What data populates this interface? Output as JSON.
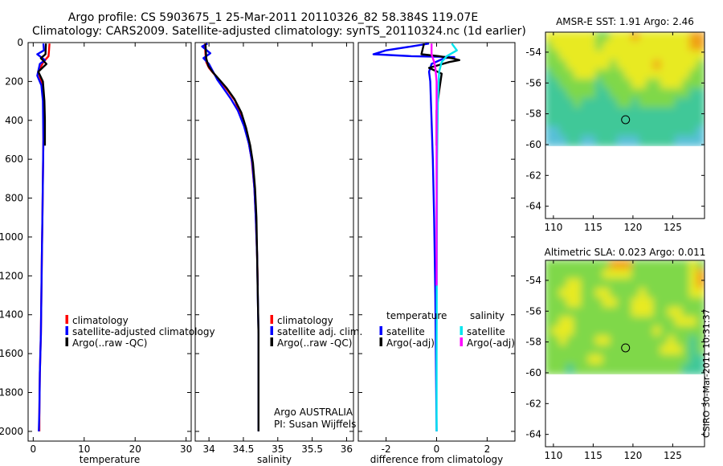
{
  "title": {
    "line1": "Argo profile: CS 5903675_1 25-Mar-2011 20110326_82 58.384S 119.07E",
    "line2": "Climatology: CARS2009. Satellite-adjusted climatology: synTS_20110324.nc (1d earlier)"
  },
  "credit": "CSIRO 30-Mar-2011 10:31:37",
  "colors": {
    "climatology": "#ff0000",
    "satellite": "#0000ff",
    "argo": "#000000",
    "sal_satellite": "#00e5ee",
    "sal_argo": "#ff00ff"
  },
  "chart_data": [
    {
      "type": "line",
      "name": "temperature-profile",
      "xlabel": "temperature",
      "ylabel": "",
      "xlim": [
        -1,
        31
      ],
      "ylim": [
        2050,
        0
      ],
      "xticks": [
        0,
        10,
        20,
        30
      ],
      "xtick_labels": [
        "0",
        "10",
        "20",
        "30"
      ],
      "yticks": [
        0,
        200,
        400,
        600,
        800,
        1000,
        1200,
        1400,
        1600,
        1800,
        2000
      ],
      "ytick_labels": [
        "0",
        "200",
        "400",
        "600",
        "800",
        "1000",
        "1200",
        "1400",
        "1600",
        "1800",
        "2000"
      ],
      "legend": [
        "climatology",
        "satellite-adjusted climatology",
        "Argo(..raw -QC)"
      ],
      "series": [
        {
          "name": "climatology",
          "color": "#ff0000",
          "points": [
            [
              3.2,
              5
            ],
            [
              3.1,
              40
            ],
            [
              3.0,
              70
            ],
            [
              2.0,
              100
            ],
            [
              1.0,
              150
            ],
            [
              1.6,
              200
            ],
            [
              2.0,
              300
            ],
            [
              2.0,
              500
            ],
            [
              1.9,
              700
            ],
            [
              1.8,
              900
            ],
            [
              1.7,
              1100
            ],
            [
              1.6,
              1300
            ],
            [
              1.5,
              1500
            ],
            [
              1.3,
              1700
            ],
            [
              1.2,
              1900
            ],
            [
              1.2,
              2000
            ]
          ]
        },
        {
          "name": "satellite-adjusted climatology",
          "color": "#0000ff",
          "points": [
            [
              2.0,
              5
            ],
            [
              2.1,
              40
            ],
            [
              0.8,
              60
            ],
            [
              2.3,
              90
            ],
            [
              1.3,
              110
            ],
            [
              0.8,
              170
            ],
            [
              1.6,
              220
            ],
            [
              1.9,
              300
            ],
            [
              2.0,
              500
            ],
            [
              1.9,
              700
            ],
            [
              1.8,
              900
            ],
            [
              1.7,
              1100
            ],
            [
              1.6,
              1300
            ],
            [
              1.5,
              1500
            ],
            [
              1.3,
              1700
            ],
            [
              1.2,
              1900
            ],
            [
              1.1,
              2000
            ]
          ]
        },
        {
          "name": "Argo(..raw -QC)",
          "color": "#000000",
          "points": [
            [
              2.5,
              5
            ],
            [
              2.4,
              60
            ],
            [
              1.5,
              80
            ],
            [
              2.6,
              110
            ],
            [
              1.0,
              150
            ],
            [
              1.9,
              200
            ],
            [
              2.2,
              300
            ],
            [
              2.3,
              400
            ],
            [
              2.3,
              530
            ]
          ]
        }
      ]
    },
    {
      "type": "line",
      "name": "salinity-profile",
      "xlabel": "salinity",
      "ylabel": "",
      "xlim": [
        33.8,
        36.1
      ],
      "ylim": [
        2050,
        0
      ],
      "xticks": [
        34,
        34.5,
        35,
        35.5,
        36
      ],
      "xtick_labels": [
        "34",
        "34.5",
        "35",
        "35.5",
        "36"
      ],
      "legend": [
        "climatology",
        "satellite adj. clim.",
        "Argo(..raw -QC)"
      ],
      "annotation": [
        "Argo AUSTRALIA",
        "PI: Susan Wijffels"
      ],
      "series": [
        {
          "name": "climatology",
          "color": "#ff0000",
          "points": [
            [
              33.94,
              5
            ],
            [
              33.95,
              60
            ],
            [
              33.96,
              100
            ],
            [
              34.0,
              130
            ],
            [
              34.07,
              160
            ],
            [
              34.17,
              200
            ],
            [
              34.28,
              250
            ],
            [
              34.38,
              300
            ],
            [
              34.49,
              400
            ],
            [
              34.57,
              500
            ],
            [
              34.62,
              600
            ],
            [
              34.66,
              750
            ],
            [
              34.68,
              900
            ],
            [
              34.7,
              1100
            ],
            [
              34.71,
              1250
            ]
          ]
        },
        {
          "name": "satellite adj. clim.",
          "color": "#0000ff",
          "points": [
            [
              33.98,
              5
            ],
            [
              33.9,
              20
            ],
            [
              34.02,
              55
            ],
            [
              33.92,
              80
            ],
            [
              34.0,
              110
            ],
            [
              34.06,
              150
            ],
            [
              34.12,
              190
            ],
            [
              34.22,
              240
            ],
            [
              34.32,
              290
            ],
            [
              34.42,
              350
            ],
            [
              34.51,
              430
            ],
            [
              34.58,
              520
            ],
            [
              34.63,
              620
            ],
            [
              34.66,
              750
            ],
            [
              34.68,
              900
            ],
            [
              34.7,
              1100
            ],
            [
              34.71,
              1300
            ],
            [
              34.72,
              1500
            ],
            [
              34.72,
              1700
            ],
            [
              34.72,
              2000
            ]
          ]
        },
        {
          "name": "Argo(..raw -QC)",
          "color": "#000000",
          "points": [
            [
              33.95,
              5
            ],
            [
              33.96,
              80
            ],
            [
              33.99,
              120
            ],
            [
              34.05,
              150
            ],
            [
              34.15,
              190
            ],
            [
              34.26,
              235
            ],
            [
              34.37,
              290
            ],
            [
              34.47,
              360
            ],
            [
              34.54,
              440
            ],
            [
              34.6,
              530
            ],
            [
              34.64,
              620
            ],
            [
              34.67,
              750
            ],
            [
              34.69,
              900
            ],
            [
              34.7,
              1100
            ],
            [
              34.71,
              1300
            ],
            [
              34.72,
              1500
            ],
            [
              34.72,
              1700
            ],
            [
              34.72,
              2000
            ]
          ]
        }
      ]
    },
    {
      "type": "line",
      "name": "difference-profile",
      "xlabel": "difference from climatology",
      "ylabel": "",
      "xlim": [
        -3.1,
        3.1
      ],
      "ylim": [
        2050,
        0
      ],
      "xticks": [
        -2,
        0,
        2
      ],
      "xtick_labels": [
        "-2",
        "0",
        "2"
      ],
      "legend_headers": [
        "temperature",
        "salinity"
      ],
      "legend": [
        "satellite",
        "Argo(-adj)",
        "satellite",
        "Argo(-adj)"
      ],
      "series": [
        {
          "name": "temperature satellite",
          "color": "#0000ff",
          "points": [
            [
              -0.3,
              5
            ],
            [
              -1.0,
              20
            ],
            [
              -2.0,
              40
            ],
            [
              -2.5,
              60
            ],
            [
              -1.0,
              70
            ],
            [
              0.7,
              75
            ],
            [
              0.3,
              80
            ],
            [
              -0.2,
              110
            ],
            [
              -0.3,
              150
            ],
            [
              -0.25,
              200
            ],
            [
              -0.2,
              400
            ],
            [
              -0.15,
              600
            ],
            [
              -0.1,
              900
            ],
            [
              -0.05,
              1300
            ],
            [
              0,
              2000
            ]
          ]
        },
        {
          "name": "temperature Argo(-adj)",
          "color": "#000000",
          "points": [
            [
              -0.5,
              5
            ],
            [
              -0.6,
              60
            ],
            [
              0.1,
              70
            ],
            [
              0.6,
              80
            ],
            [
              0.9,
              90
            ],
            [
              0.5,
              100
            ],
            [
              -0.3,
              130
            ],
            [
              0.2,
              160
            ],
            [
              0.1,
              250
            ],
            [
              0.0,
              350
            ],
            [
              0.0,
              530
            ]
          ]
        },
        {
          "name": "salinity satellite",
          "color": "#00e5ee",
          "points": [
            [
              0.6,
              5
            ],
            [
              0.8,
              40
            ],
            [
              0.4,
              70
            ],
            [
              0.2,
              100
            ],
            [
              0.1,
              150
            ],
            [
              0.05,
              300
            ],
            [
              0.02,
              600
            ],
            [
              0.01,
              1000
            ],
            [
              0.0,
              1600
            ],
            [
              0.0,
              2000
            ]
          ]
        },
        {
          "name": "salinity Argo(-adj)",
          "color": "#ff00ff",
          "points": [
            [
              -0.2,
              5
            ],
            [
              -0.2,
              60
            ],
            [
              -0.1,
              100
            ],
            [
              -0.05,
              130
            ],
            [
              0.0,
              200
            ],
            [
              0.0,
              400
            ],
            [
              0.0,
              1250
            ]
          ]
        }
      ]
    },
    {
      "type": "heatmap",
      "name": "sst-map",
      "title": "AMSR-E SST: 1.91 Argo: 2.46",
      "xlim": [
        109,
        129
      ],
      "ylim": [
        -64.8,
        -52.7
      ],
      "xticks": [
        110,
        115,
        120,
        125
      ],
      "xtick_labels": [
        "110",
        "115",
        "120",
        "125"
      ],
      "yticks": [
        -54,
        -56,
        -58,
        -60,
        -62,
        -64
      ],
      "ytick_labels": [
        "-54",
        "-56",
        "-58",
        "-60",
        "-62",
        "-64"
      ],
      "data_south_limit": -60.1,
      "argo_position": [
        119.07,
        -58.384
      ],
      "field_rows": [
        "yyyyyyyggyyyoyyyyyyyoo",
        "gyyyyyygyyyyyyyyyyyyoo",
        "ggyyyyyyyyyyyyyyyyyyyy",
        "gggyyyyyygyyyyyoyyyyyg",
        "tgggyyyggggyyyyyyyyygg",
        "ttgggggtggggyyggyyyggg",
        "tttggggttgggggggggggtt",
        "ttttgtttttggtgggggtttt",
        "tttttttttttttttttttttt",
        "tttttttttttttttttttttt",
        "cctttttttttttttttttttc",
        "cccttcctttccctttttcccc"
      ],
      "palette": {
        "o": "#f0a018",
        "y": "#e8ea20",
        "g": "#7fd84a",
        "t": "#40c898",
        "c": "#58c0d8"
      }
    },
    {
      "type": "heatmap",
      "name": "sla-map",
      "title": "Altimetric SLA: 0.023 Argo: 0.011",
      "xlim": [
        109,
        129
      ],
      "ylim": [
        -64.8,
        -52.7
      ],
      "xticks": [
        110,
        115,
        120,
        125
      ],
      "xtick_labels": [
        "110",
        "115",
        "120",
        "125"
      ],
      "yticks": [
        -54,
        -56,
        -58,
        -60,
        -62,
        -64
      ],
      "ytick_labels": [
        "-54",
        "-56",
        "-58",
        "-60",
        "-62",
        "-64"
      ],
      "data_south_limit": -60.1,
      "argo_position": [
        119.07,
        -58.384
      ],
      "field_rows": [
        "gggggggggoooggggggggyg",
        "ggggggggyyyyggggggggyo",
        "gggyygggggggggggggggyo",
        "ggyyyggyyggggyggggggyy",
        "gggyygggyyggyyyggggggg",
        "ggggggggggggyyyggyyggg",
        "ggyyggggggggggggggyyyg",
        "gyyygggggggggggygggggg",
        "ggyggggyyggggggggyggtg",
        "ggggggggggggggggyyygtg",
        "ggggggyyggggggggggggtt",
        "gggtgggggggggggggggttt"
      ],
      "palette": {
        "o": "#f0a018",
        "y": "#e8ea20",
        "g": "#7fd84a",
        "t": "#40c898",
        "c": "#58c0d8"
      }
    }
  ]
}
